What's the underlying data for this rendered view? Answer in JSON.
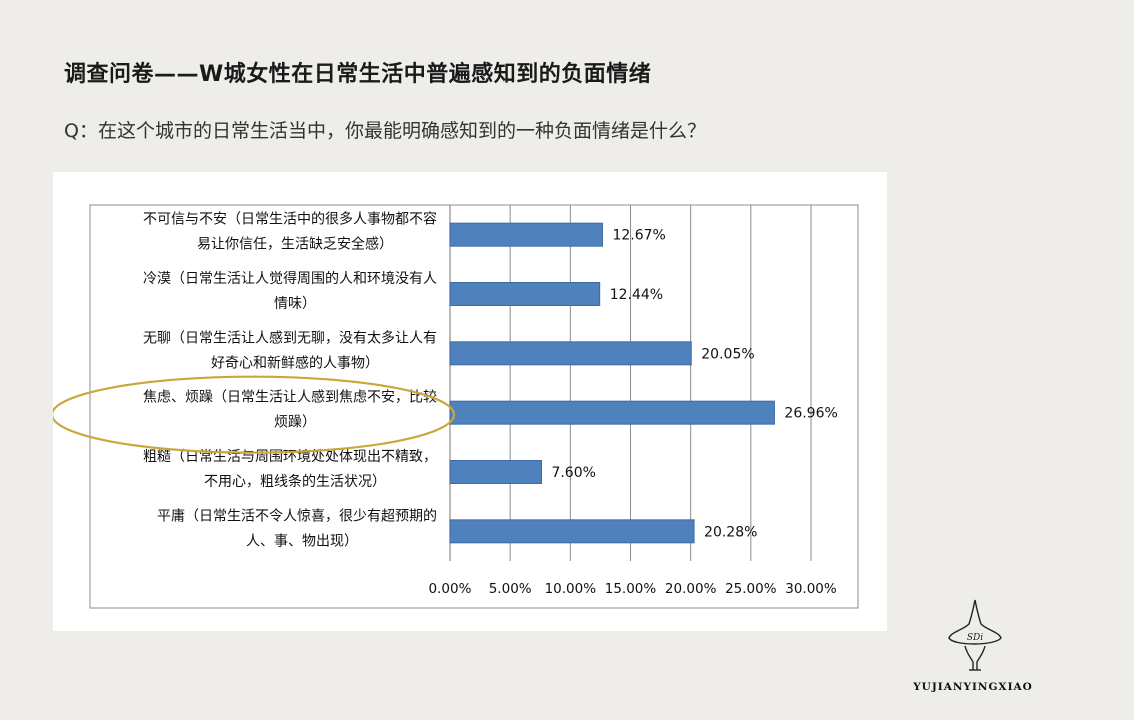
{
  "page": {
    "title": "调查问卷——W城女性在日常生活中普遍感知到的负面情绪",
    "question": "Q：在这个城市的日常生活当中，你最能明确感知到的一种负面情绪是什么？"
  },
  "brand": {
    "logo_text": "YUJIANYINGXIAO",
    "logo_mark_text": "SDi"
  },
  "chart_data": {
    "type": "bar",
    "orientation": "horizontal",
    "categories": [
      [
        "不可信与不安（日常生活中的很多人事物都不容",
        "易让你信任，生活缺乏安全感）"
      ],
      [
        "冷漠（日常生活让人觉得周围的人和环境没有人",
        "情味）"
      ],
      [
        "无聊（日常生活让人感到无聊，没有太多让人有",
        "好奇心和新鲜感的人事物）"
      ],
      [
        "焦虑、烦躁（日常生活让人感到焦虑不安，比较",
        "烦躁）"
      ],
      [
        "粗糙（日常生活与周围环境处处体现出不精致，",
        "不用心，粗线条的生活状况）"
      ],
      [
        "平庸（日常生活不令人惊喜，很少有超预期的",
        "人、事、物出现）"
      ]
    ],
    "values": [
      12.67,
      12.44,
      20.05,
      26.96,
      7.6,
      20.28
    ],
    "value_labels": [
      "12.67%",
      "12.44%",
      "20.05%",
      "26.96%",
      "7.60%",
      "20.28%"
    ],
    "xlim": [
      0,
      30
    ],
    "x_ticks": [
      "0.00%",
      "5.00%",
      "10.00%",
      "15.00%",
      "20.00%",
      "25.00%",
      "30.00%"
    ],
    "grid": "vertical",
    "highlighted_index": 3,
    "colors": {
      "bar": "#4f81bd",
      "bar_border": "#3c6aa6",
      "highlight_ring": "#c9a83b",
      "grid": "#8c8c8c"
    }
  }
}
